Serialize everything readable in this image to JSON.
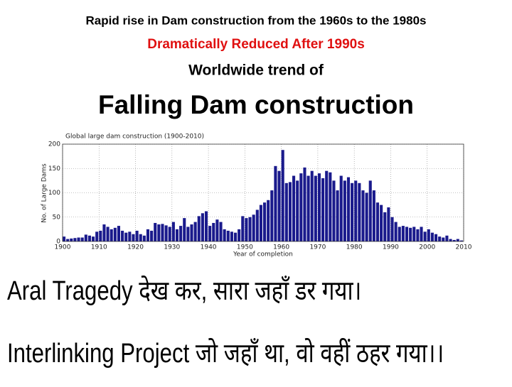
{
  "slide": {
    "line1": "Rapid rise in Dam construction from the 1960s to the 1980s",
    "line2": "Dramatically Reduced After 1990s",
    "line3": "Worldwide trend of",
    "heading": "Falling  Dam construction",
    "bottom1": "Aral Tragedy देख कर,  सारा  जहाँ डर गया।",
    "bottom2": "Interlinking Project जो जहाँ था, वो वहीं ठहर गया।।"
  },
  "chart_data": {
    "type": "bar",
    "title": "Global large dam construction (1900-2010)",
    "x_label": "Year of completion",
    "y_label": "No. of Large Dams",
    "color": "#1a1a8c",
    "x": [
      1900,
      1901,
      1902,
      1903,
      1904,
      1905,
      1906,
      1907,
      1908,
      1909,
      1910,
      1911,
      1912,
      1913,
      1914,
      1915,
      1916,
      1917,
      1918,
      1919,
      1920,
      1921,
      1922,
      1923,
      1924,
      1925,
      1926,
      1927,
      1928,
      1929,
      1930,
      1931,
      1932,
      1933,
      1934,
      1935,
      1936,
      1937,
      1938,
      1939,
      1940,
      1941,
      1942,
      1943,
      1944,
      1945,
      1946,
      1947,
      1948,
      1949,
      1950,
      1951,
      1952,
      1953,
      1954,
      1955,
      1956,
      1957,
      1958,
      1959,
      1960,
      1961,
      1962,
      1963,
      1964,
      1965,
      1966,
      1967,
      1968,
      1969,
      1970,
      1971,
      1972,
      1973,
      1974,
      1975,
      1976,
      1977,
      1978,
      1979,
      1980,
      1981,
      1982,
      1983,
      1984,
      1985,
      1986,
      1987,
      1988,
      1989,
      1990,
      1991,
      1992,
      1993,
      1994,
      1995,
      1996,
      1997,
      1998,
      1999,
      2000,
      2001,
      2002,
      2003,
      2004,
      2005,
      2006,
      2007,
      2008,
      2009
    ],
    "values": [
      10,
      5,
      6,
      7,
      8,
      8,
      14,
      12,
      10,
      20,
      22,
      35,
      30,
      25,
      28,
      32,
      22,
      18,
      20,
      15,
      22,
      15,
      12,
      25,
      22,
      38,
      35,
      36,
      33,
      30,
      40,
      25,
      32,
      48,
      30,
      35,
      40,
      52,
      58,
      62,
      32,
      38,
      45,
      40,
      25,
      22,
      20,
      18,
      25,
      52,
      48,
      50,
      55,
      65,
      75,
      80,
      85,
      105,
      155,
      145,
      188,
      120,
      122,
      135,
      125,
      140,
      152,
      135,
      145,
      135,
      140,
      130,
      145,
      142,
      125,
      105,
      135,
      125,
      132,
      120,
      125,
      120,
      105,
      100,
      125,
      105,
      80,
      75,
      60,
      70,
      50,
      40,
      30,
      32,
      30,
      28,
      30,
      25,
      30,
      20,
      25,
      18,
      15,
      10,
      8,
      12,
      5,
      3,
      5,
      2
    ],
    "xlim": [
      1900,
      2010
    ],
    "xticks": [
      1900,
      1910,
      1920,
      1930,
      1940,
      1950,
      1960,
      1970,
      1980,
      1990,
      2000,
      2010
    ],
    "ylim": [
      0,
      200
    ],
    "yticks": [
      0,
      50,
      100,
      150,
      200
    ],
    "grid": true
  }
}
